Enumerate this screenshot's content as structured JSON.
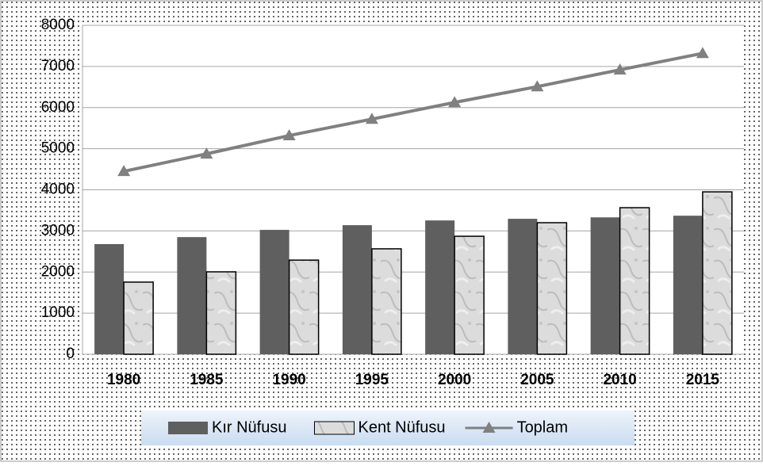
{
  "chart_data": {
    "type": "bar-line",
    "categories": [
      "1980",
      "1985",
      "1990",
      "1995",
      "2000",
      "2005",
      "2010",
      "2015"
    ],
    "series": [
      {
        "name": "Kır Nüfusu",
        "type": "bar",
        "color": "#5f5f5f",
        "values": [
          2680,
          2850,
          3025,
          3140,
          3255,
          3295,
          3330,
          3370
        ]
      },
      {
        "name": "Kent Nüfusu",
        "type": "bar",
        "color": "#d9d9d9",
        "values": [
          1755,
          2005,
          2290,
          2565,
          2870,
          3200,
          3565,
          3950
        ]
      },
      {
        "name": "Toplam",
        "type": "line",
        "color": "#808080",
        "values": [
          4450,
          4875,
          5320,
          5720,
          6125,
          6510,
          6920,
          7320
        ]
      }
    ],
    "ylim": [
      0,
      8000
    ],
    "yticks": [
      0,
      1000,
      2000,
      3000,
      4000,
      5000,
      6000,
      7000,
      8000
    ],
    "grid": true,
    "legend": "bottom"
  }
}
